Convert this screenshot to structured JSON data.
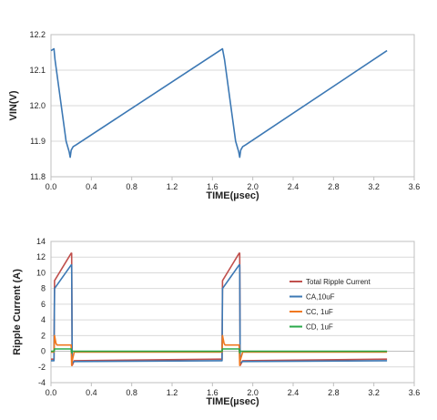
{
  "chart_data": [
    {
      "type": "line",
      "title": "",
      "xlabel": "TIME(µsec)",
      "ylabel": "VIN(V)",
      "xlim": [
        0,
        3.6
      ],
      "ylim": [
        11.8,
        12.2
      ],
      "xticks": [
        "0.0",
        "0.4",
        "0.8",
        "1.2",
        "1.6",
        "2.0",
        "2.4",
        "2.8",
        "3.2",
        "3.6"
      ],
      "yticks": [
        "11.8",
        "11.9",
        "12.0",
        "12.1",
        "12.2"
      ],
      "grid": true,
      "series": [
        {
          "color": "#3c78b4",
          "x": [
            0.0,
            0.03,
            0.04,
            0.15,
            0.18,
            0.19,
            0.2,
            0.22,
            0.25,
            1.7,
            1.72,
            1.83,
            1.86,
            1.87,
            1.88,
            1.9,
            1.93,
            3.33
          ],
          "y": [
            12.155,
            12.16,
            12.13,
            11.9,
            11.87,
            11.855,
            11.875,
            11.885,
            11.89,
            12.16,
            12.13,
            11.9,
            11.87,
            11.855,
            11.875,
            11.885,
            11.89,
            12.155
          ]
        }
      ]
    },
    {
      "type": "line",
      "title": "",
      "xlabel": "TIME(µsec)",
      "ylabel": "Ripple Current (A)",
      "xlim": [
        0,
        3.6
      ],
      "ylim": [
        -4,
        14
      ],
      "xticks": [
        "0.0",
        "0.4",
        "0.8",
        "1.2",
        "1.6",
        "2.0",
        "2.4",
        "2.8",
        "3.2",
        "3.6"
      ],
      "yticks": [
        "-4",
        "-2",
        "0",
        "2",
        "4",
        "6",
        "8",
        "10",
        "12",
        "14"
      ],
      "grid": true,
      "legend": "right",
      "series": [
        {
          "name": "Total Ripple Current",
          "color": "#c0504d",
          "x": [
            0.0,
            0.03,
            0.035,
            0.2,
            0.205,
            0.21,
            0.23,
            1.68,
            1.695,
            1.7,
            1.865,
            1.87,
            1.875,
            1.9,
            3.33
          ],
          "y": [
            -1.0,
            -1.0,
            9.0,
            12.5,
            12.5,
            -1.8,
            -1.2,
            -1.0,
            -1.0,
            9.0,
            12.5,
            12.5,
            -1.8,
            -1.2,
            -1.0
          ]
        },
        {
          "name": "CA,10uF",
          "color": "#3c78b4",
          "x": [
            0.0,
            0.03,
            0.035,
            0.2,
            0.205,
            0.21,
            0.23,
            1.68,
            1.695,
            1.7,
            1.865,
            1.87,
            1.875,
            1.9,
            3.33
          ],
          "y": [
            -1.2,
            -1.2,
            8.0,
            11.0,
            11.0,
            -1.5,
            -1.3,
            -1.2,
            -1.2,
            8.0,
            11.0,
            11.0,
            -1.5,
            -1.3,
            -1.2
          ]
        },
        {
          "name": "CC, 1uF",
          "color": "#f07820",
          "x": [
            0.0,
            0.03,
            0.035,
            0.05,
            0.06,
            0.2,
            0.205,
            0.21,
            0.23,
            1.68,
            1.695,
            1.7,
            1.715,
            1.725,
            1.865,
            1.87,
            1.875,
            1.9,
            3.33
          ],
          "y": [
            -0.1,
            -0.1,
            2.0,
            1.0,
            0.8,
            0.8,
            -1.8,
            -1.2,
            -0.1,
            -0.1,
            -0.1,
            2.0,
            1.0,
            0.8,
            0.8,
            -1.8,
            -1.2,
            -0.1,
            -0.1
          ]
        },
        {
          "name": "CD, 1uF",
          "color": "#2aa84a",
          "x": [
            0.0,
            0.03,
            0.035,
            0.2,
            0.205,
            0.21,
            1.68,
            1.695,
            1.7,
            1.865,
            1.87,
            1.875,
            3.33
          ],
          "y": [
            0.0,
            0.0,
            0.3,
            0.3,
            -0.2,
            0.0,
            0.0,
            0.0,
            0.3,
            0.3,
            -0.2,
            0.0,
            0.0
          ]
        }
      ]
    }
  ]
}
